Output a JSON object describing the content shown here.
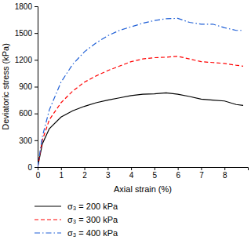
{
  "chart_data": {
    "type": "line",
    "x_label": "Axial strain (%)",
    "y_label": "Deviatoric stress (kPa)",
    "x": [
      0,
      0.2,
      0.5,
      1,
      1.5,
      2,
      2.5,
      3,
      3.5,
      4,
      4.5,
      5,
      5.5,
      6,
      6.5,
      7,
      7.5,
      8,
      8.5,
      8.8
    ],
    "series": [
      {
        "name": "σ₃ = 200 kPa",
        "color": "#000000",
        "line_style": "solid",
        "values": [
          0,
          260,
          430,
          560,
          630,
          680,
          720,
          750,
          775,
          800,
          815,
          820,
          830,
          815,
          790,
          760,
          750,
          740,
          700,
          690
        ]
      },
      {
        "name": "σ₃ = 300 kPa",
        "color": "#ff0000",
        "line_style": "dashed",
        "values": [
          0,
          300,
          530,
          720,
          850,
          950,
          1020,
          1080,
          1130,
          1180,
          1210,
          1225,
          1230,
          1240,
          1210,
          1180,
          1170,
          1160,
          1140,
          1130
        ]
      },
      {
        "name": "σ₃ = 400 kPa",
        "color": "#1f5fd6",
        "line_style": "dashdot",
        "values": [
          0,
          340,
          640,
          950,
          1150,
          1290,
          1390,
          1470,
          1530,
          1570,
          1610,
          1640,
          1660,
          1665,
          1620,
          1600,
          1600,
          1560,
          1530,
          1530
        ]
      }
    ],
    "xlim": [
      0,
      9
    ],
    "xticks": [
      0,
      1,
      2,
      3,
      4,
      5,
      6,
      7,
      8
    ],
    "ylim": [
      0,
      1800
    ],
    "yticks": [
      0,
      300,
      600,
      900,
      1200,
      1500,
      1800
    ],
    "grid": false,
    "legend": "bottom-left"
  }
}
